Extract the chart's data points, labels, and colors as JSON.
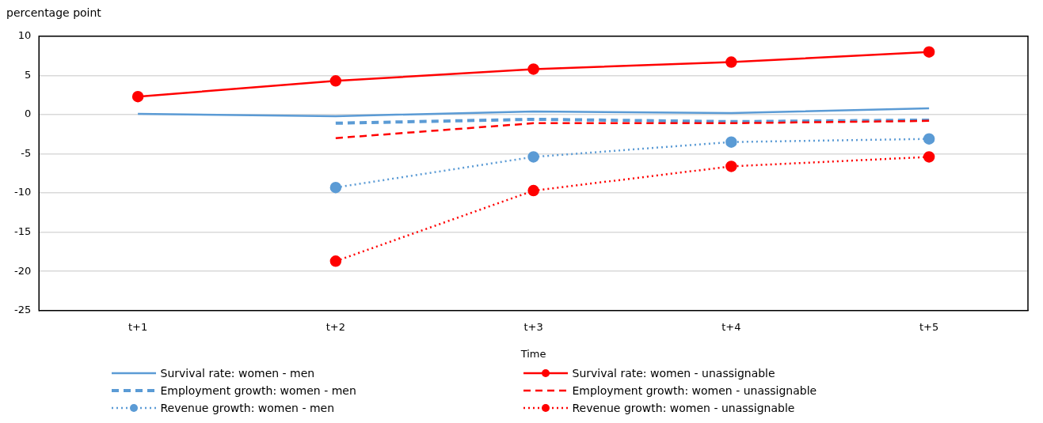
{
  "chart_data": {
    "type": "line",
    "ylabel": "percentage point",
    "xlabel": "Time",
    "categories": [
      "t+1",
      "t+2",
      "t+3",
      "t+4",
      "t+5"
    ],
    "ylim": [
      -25,
      10
    ],
    "yticks": [
      -25,
      -20,
      -15,
      -10,
      -5,
      0,
      5,
      10
    ],
    "grid": "y",
    "legend": "bottom",
    "series": [
      {
        "name": "Survival rate: women - men",
        "color": "#5b9bd5",
        "line_style": "solid",
        "marker": "none",
        "values": [
          0.1,
          -0.2,
          0.4,
          0.2,
          0.8
        ]
      },
      {
        "name": "Survival rate: women - unassignable",
        "color": "#ff0000",
        "line_style": "solid",
        "marker": "circle",
        "values": [
          2.3,
          4.3,
          5.8,
          6.7,
          8.0
        ]
      },
      {
        "name": "Employment growth: women - men",
        "color": "#5b9bd5",
        "line_style": "dashed",
        "marker": "none",
        "values": [
          null,
          -1.1,
          -0.6,
          -0.9,
          -0.7
        ]
      },
      {
        "name": "Employment growth: women - unassignable",
        "color": "#ff0000",
        "line_style": "dashed",
        "marker": "none",
        "values": [
          null,
          -3.0,
          -1.1,
          -1.1,
          -0.8
        ]
      },
      {
        "name": "Revenue growth: women - men",
        "color": "#5b9bd5",
        "line_style": "dotted",
        "marker": "circle",
        "values": [
          null,
          -9.3,
          -5.4,
          -3.5,
          -3.1
        ]
      },
      {
        "name": "Revenue growth: women - unassignable",
        "color": "#ff0000",
        "line_style": "dotted",
        "marker": "circle",
        "values": [
          null,
          -18.7,
          -9.7,
          -6.6,
          -5.4
        ]
      }
    ]
  }
}
